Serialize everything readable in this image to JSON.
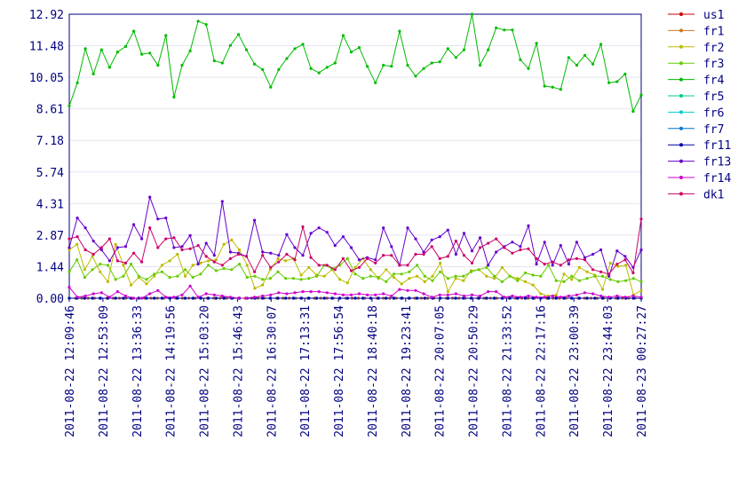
{
  "chart_data": {
    "type": "line",
    "title": "",
    "xlabel": "",
    "ylabel": "",
    "ylim": [
      0,
      12.92
    ],
    "yticks": [
      "0.00",
      "1.44",
      "2.87",
      "4.31",
      "5.74",
      "7.18",
      "8.61",
      "10.05",
      "11.48",
      "12.92"
    ],
    "xticks": [
      "2011-08-22 12:09:46",
      "2011-08-22 12:53:09",
      "2011-08-22 13:36:33",
      "2011-08-22 14:19:56",
      "2011-08-22 15:03:20",
      "2011-08-22 15:46:43",
      "2011-08-22 16:30:07",
      "2011-08-22 17:13:31",
      "2011-08-22 17:56:54",
      "2011-08-22 18:40:18",
      "2011-08-22 19:23:41",
      "2011-08-22 20:07:05",
      "2011-08-22 20:50:29",
      "2011-08-22 21:33:52",
      "2011-08-22 22:17:16",
      "2011-08-22 23:00:39",
      "2011-08-22 23:44:03",
      "2011-08-23 00:27:27"
    ],
    "grid": "horizontal",
    "legend_position": "right",
    "series": [
      {
        "name": "us1",
        "color": "#cc0000",
        "values": [
          0,
          0,
          0,
          0,
          0,
          0,
          0,
          0,
          0,
          0,
          0,
          0,
          0,
          0,
          0,
          0,
          0,
          0,
          0,
          0,
          0,
          0,
          0,
          0,
          0,
          0,
          0,
          0,
          0,
          0,
          0,
          0,
          0,
          0,
          0,
          0,
          0,
          0,
          0,
          0,
          0,
          0,
          0,
          0,
          0,
          0,
          0,
          0,
          0,
          0,
          0,
          0,
          0,
          0,
          0,
          0,
          0,
          0,
          0,
          0,
          0,
          0,
          0,
          0,
          0,
          0,
          0,
          0,
          0,
          0,
          0,
          0,
          0,
          0,
          0,
          0,
          0,
          0,
          0,
          0,
          0,
          0,
          0,
          0,
          0,
          0,
          0,
          0,
          0,
          0,
          0,
          0
        ]
      },
      {
        "name": "fr1",
        "color": "#cc7722",
        "values": [
          0,
          0,
          0,
          0,
          0,
          0,
          0,
          0,
          0,
          0,
          0,
          0,
          0,
          0,
          0,
          0,
          0,
          0,
          0,
          0,
          0,
          0,
          0,
          0,
          0,
          0,
          0,
          0,
          0,
          0,
          0,
          0,
          0,
          0,
          0,
          0,
          0,
          0,
          0,
          0,
          0,
          0,
          0,
          0,
          0,
          0,
          0,
          0,
          0,
          0,
          0,
          0,
          0,
          0,
          0,
          0,
          0,
          0,
          0,
          0,
          0,
          0,
          0,
          0,
          0,
          0,
          0,
          0,
          0,
          0,
          0,
          0,
          0,
          0,
          0,
          0,
          0,
          0,
          0,
          0,
          0,
          0,
          0,
          0,
          0,
          0,
          0,
          0,
          0,
          0,
          0,
          0
        ]
      },
      {
        "name": "fr2",
        "color": "#bbbb00",
        "values": [
          2.2,
          2.45,
          1.3,
          1.9,
          1.2,
          0.75,
          2.45,
          1.5,
          0.6,
          0.95,
          0.65,
          1.0,
          1.5,
          1.7,
          2.0,
          1.0,
          1.5,
          1.6,
          1.7,
          1.75,
          2.45,
          2.65,
          2.2,
          1.5,
          0.45,
          0.6,
          1.3,
          1.8,
          1.7,
          1.8,
          1.05,
          1.4,
          1.05,
          1.0,
          1.3,
          0.85,
          0.7,
          1.4,
          1.8,
          1.3,
          0.9,
          1.3,
          0.95,
          0.65,
          0.9,
          1.0,
          0.75,
          1.0,
          1.6,
          0.3,
          0.9,
          0.8,
          1.25,
          1.3,
          1.0,
          0.9,
          1.4,
          1.0,
          0.9,
          0.75,
          0.6,
          0.2,
          0.1,
          0.15,
          1.1,
          0.85,
          1.4,
          1.2,
          1.05,
          0.4,
          1.6,
          1.45,
          1.5,
          0.15,
          0.35
        ]
      },
      {
        "name": "fr3",
        "color": "#66cc00",
        "values": [
          1.2,
          1.75,
          0.95,
          1.3,
          1.55,
          1.5,
          0.85,
          1.0,
          1.55,
          1.0,
          0.85,
          1.1,
          1.2,
          0.95,
          1.0,
          1.3,
          0.95,
          1.1,
          1.5,
          1.25,
          1.35,
          1.3,
          1.55,
          0.95,
          1.0,
          0.85,
          0.9,
          1.2,
          0.9,
          0.9,
          0.85,
          0.9,
          1.0,
          1.5,
          1.35,
          1.5,
          1.8,
          1.1,
          0.9,
          1.0,
          0.95,
          0.75,
          1.1,
          1.1,
          1.2,
          1.5,
          1.0,
          0.8,
          1.2,
          0.9,
          1.0,
          1.0,
          1.2,
          1.3,
          1.4,
          1.0,
          0.75,
          1.0,
          0.8,
          1.15,
          1.05,
          1.0,
          1.5,
          0.8,
          0.75,
          1.0,
          0.8,
          0.9,
          1.0,
          1.0,
          0.85,
          0.75,
          0.8,
          0.9,
          0.75
        ]
      },
      {
        "name": "fr4",
        "color": "#00bb00",
        "values": [
          8.75,
          9.8,
          11.35,
          10.2,
          11.3,
          10.5,
          11.2,
          11.45,
          12.15,
          11.1,
          11.15,
          10.6,
          11.95,
          9.15,
          10.6,
          11.25,
          12.6,
          12.45,
          10.8,
          10.7,
          11.5,
          12.0,
          11.3,
          10.65,
          10.4,
          9.6,
          10.4,
          10.9,
          11.35,
          11.55,
          10.45,
          10.25,
          10.5,
          10.7,
          11.95,
          11.2,
          11.4,
          10.55,
          9.8,
          10.6,
          10.55,
          12.15,
          10.6,
          10.1,
          10.45,
          10.7,
          10.75,
          11.35,
          10.95,
          11.3,
          12.92,
          10.6,
          11.3,
          12.3,
          12.2,
          12.2,
          10.85,
          10.45,
          11.6,
          9.65,
          9.6,
          9.5,
          10.95,
          10.6,
          11.05,
          10.65,
          11.55,
          9.8,
          9.85,
          10.2,
          8.5,
          9.25
        ]
      },
      {
        "name": "fr5",
        "color": "#00cc88",
        "values": [
          0,
          0,
          0,
          0,
          0,
          0,
          0,
          0,
          0,
          0,
          0,
          0,
          0,
          0,
          0,
          0,
          0,
          0,
          0,
          0,
          0,
          0,
          0,
          0,
          0,
          0,
          0,
          0,
          0,
          0,
          0,
          0,
          0,
          0,
          0,
          0,
          0,
          0,
          0,
          0,
          0,
          0,
          0,
          0,
          0,
          0,
          0,
          0,
          0,
          0,
          0,
          0,
          0,
          0,
          0,
          0,
          0,
          0,
          0,
          0,
          0,
          0,
          0,
          0,
          0,
          0,
          0,
          0,
          0,
          0,
          0,
          0,
          0,
          0,
          0
        ]
      },
      {
        "name": "fr6",
        "color": "#00cccc",
        "values": [
          0,
          0,
          0,
          0,
          0,
          0,
          0,
          0,
          0,
          0,
          0,
          0,
          0,
          0,
          0,
          0,
          0,
          0,
          0,
          0,
          0,
          0,
          0,
          0,
          0,
          0,
          0,
          0,
          0,
          0,
          0,
          0,
          0,
          0,
          0,
          0,
          0,
          0,
          0,
          0,
          0,
          0,
          0,
          0,
          0,
          0,
          0,
          0,
          0,
          0,
          0,
          0,
          0,
          0,
          0,
          0,
          0,
          0,
          0,
          0,
          0,
          0,
          0,
          0,
          0,
          0,
          0,
          0,
          0,
          0,
          0,
          0,
          0,
          0,
          0
        ]
      },
      {
        "name": "fr7",
        "color": "#0077cc",
        "values": [
          0,
          0,
          0,
          0,
          0,
          0,
          0,
          0,
          0,
          0,
          0,
          0,
          0,
          0,
          0,
          0,
          0,
          0,
          0,
          0,
          0,
          0,
          0,
          0,
          0,
          0,
          0,
          0,
          0,
          0,
          0,
          0,
          0,
          0,
          0,
          0,
          0,
          0,
          0,
          0,
          0,
          0,
          0,
          0,
          0,
          0,
          0,
          0,
          0,
          0,
          0,
          0,
          0,
          0,
          0,
          0,
          0,
          0,
          0,
          0,
          0,
          0,
          0,
          0,
          0,
          0,
          0,
          0,
          0,
          0,
          0,
          0,
          0,
          0,
          0
        ]
      },
      {
        "name": "fr11",
        "color": "#0000aa",
        "values": [
          0,
          0,
          0,
          0,
          0,
          0,
          0,
          0,
          0,
          0,
          0,
          0,
          0,
          0,
          0,
          0,
          0,
          0,
          0,
          0,
          0,
          0,
          0,
          0,
          0,
          0,
          0,
          0,
          0,
          0,
          0,
          0,
          0,
          0,
          0,
          0,
          0,
          0,
          0,
          0,
          0,
          0,
          0,
          0,
          0,
          0,
          0,
          0,
          0,
          0,
          0,
          0,
          0,
          0,
          0,
          0,
          0,
          0,
          0,
          0,
          0,
          0,
          0,
          0,
          0,
          0,
          0,
          0,
          0,
          0,
          0,
          0,
          0,
          0,
          0
        ]
      },
      {
        "name": "fr13",
        "color": "#6600cc",
        "values": [
          2.3,
          3.65,
          3.2,
          2.6,
          2.2,
          1.7,
          2.3,
          2.35,
          3.35,
          2.7,
          4.6,
          3.6,
          3.65,
          2.3,
          2.35,
          2.85,
          1.55,
          2.5,
          1.95,
          4.4,
          2.1,
          2.05,
          1.9,
          3.55,
          2.1,
          2.05,
          1.95,
          2.9,
          2.3,
          1.95,
          2.95,
          3.2,
          3.0,
          2.4,
          2.8,
          2.3,
          1.75,
          1.85,
          1.75,
          3.2,
          2.35,
          1.5,
          3.2,
          2.7,
          2.1,
          2.65,
          2.8,
          3.1,
          2.0,
          2.95,
          2.15,
          2.75,
          1.5,
          2.1,
          2.35,
          2.55,
          2.35,
          3.3,
          1.55,
          2.55,
          1.5,
          2.4,
          1.55,
          2.55,
          1.85,
          2.0,
          2.2,
          1.0,
          2.15,
          1.9,
          1.4,
          2.2
        ]
      },
      {
        "name": "fr14",
        "color": "#cc00cc",
        "values": [
          0.5,
          0.05,
          0.1,
          0.2,
          0.25,
          0.05,
          0.3,
          0.1,
          0.0,
          0.0,
          0.2,
          0.35,
          0.05,
          0.05,
          0.15,
          0.55,
          0.05,
          0.2,
          0.15,
          0.1,
          0.05,
          0.0,
          0.0,
          0.05,
          0.1,
          0.15,
          0.25,
          0.2,
          0.25,
          0.3,
          0.3,
          0.3,
          0.25,
          0.2,
          0.15,
          0.15,
          0.2,
          0.15,
          0.15,
          0.2,
          0.1,
          0.4,
          0.35,
          0.35,
          0.2,
          0.05,
          0.15,
          0.15,
          0.2,
          0.1,
          0.15,
          0.1,
          0.3,
          0.3,
          0.05,
          0.1,
          0.05,
          0.1,
          0.05,
          0.05,
          0.1,
          0.05,
          0.1,
          0.15,
          0.25,
          0.2,
          0.1,
          0.05,
          0.1,
          0.05,
          0.1,
          0.05
        ]
      },
      {
        "name": "dk1",
        "color": "#cc0066",
        "values": [
          2.7,
          2.8,
          2.2,
          2.0,
          2.3,
          2.7,
          1.7,
          1.6,
          2.05,
          1.65,
          3.2,
          2.3,
          2.7,
          2.75,
          2.2,
          2.25,
          2.4,
          1.9,
          1.65,
          1.5,
          1.8,
          2.0,
          1.9,
          1.2,
          1.95,
          1.4,
          1.65,
          2.0,
          1.75,
          3.25,
          1.85,
          1.5,
          1.5,
          1.3,
          1.8,
          1.25,
          1.4,
          1.8,
          1.6,
          1.95,
          1.95,
          1.5,
          1.5,
          2.0,
          2.0,
          2.35,
          1.8,
          1.9,
          2.6,
          1.95,
          1.6,
          2.3,
          2.5,
          2.7,
          2.3,
          2.05,
          2.2,
          2.25,
          1.8,
          1.55,
          1.65,
          1.5,
          1.75,
          1.8,
          1.75,
          1.3,
          1.2,
          1.1,
          1.55,
          1.75,
          1.15,
          3.6
        ]
      }
    ]
  }
}
